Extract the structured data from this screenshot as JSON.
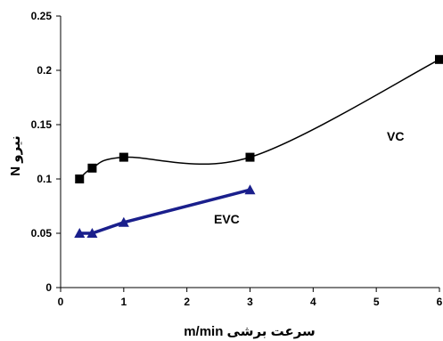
{
  "chart_data": {
    "type": "line",
    "xlabel": "سرعت برشی m/min",
    "ylabel": "نیرو N",
    "xlim": [
      0,
      6
    ],
    "ylim": [
      0,
      0.25
    ],
    "x_ticks": [
      0,
      1,
      2,
      3,
      4,
      5,
      6
    ],
    "y_ticks": [
      "0",
      "0.05",
      "0.1",
      "0.15",
      "0.2",
      "0.25"
    ],
    "grid": false,
    "legend": "none",
    "series": [
      {
        "name": "VC",
        "smooth": true,
        "color": "#000000",
        "marker": "square",
        "x": [
          0.3,
          0.5,
          1,
          3,
          6
        ],
        "y": [
          0.1,
          0.11,
          0.12,
          0.12,
          0.21
        ]
      },
      {
        "name": "EVC",
        "smooth": false,
        "color": "#1a1f8c",
        "marker": "triangle",
        "x": [
          0.3,
          0.5,
          1,
          3
        ],
        "y": [
          0.05,
          0.05,
          0.06,
          0.09
        ]
      }
    ]
  }
}
